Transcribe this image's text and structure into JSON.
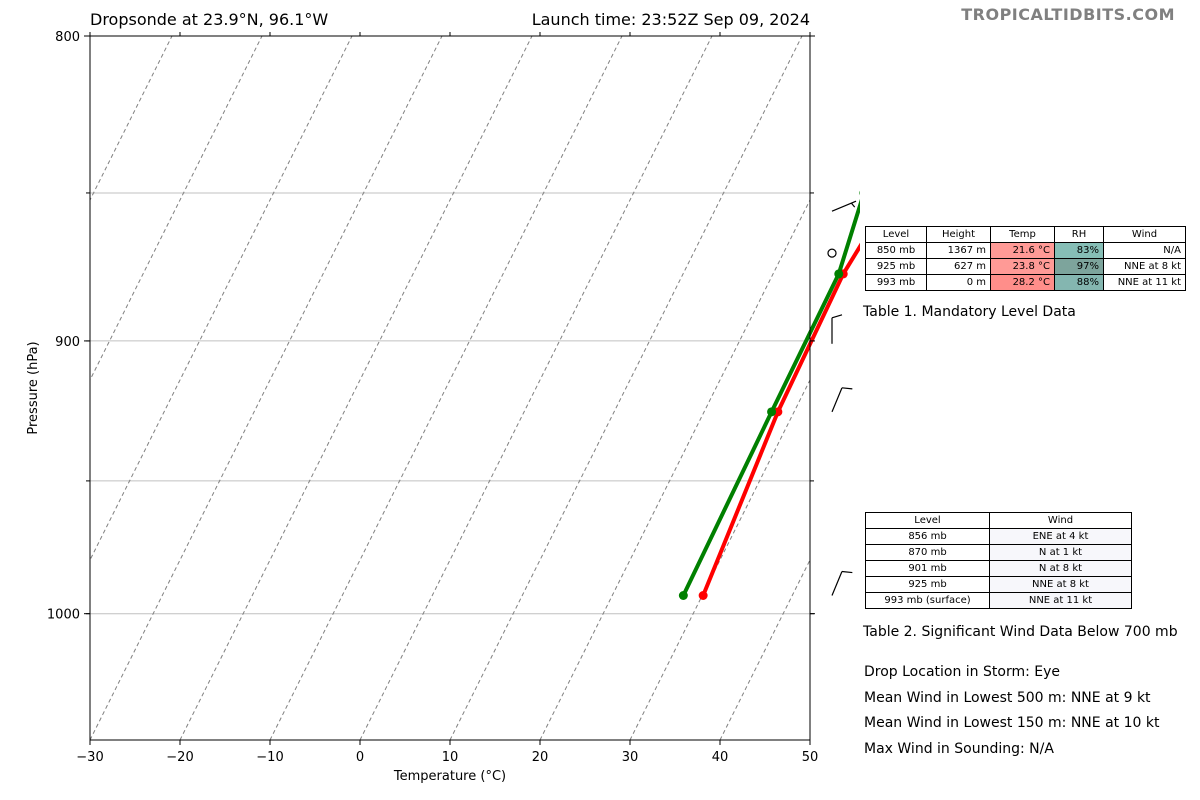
{
  "title_left": "Dropsonde at 23.9°N, 96.1°W",
  "title_right": "Launch time: 23:52Z Sep 09, 2024",
  "brand": "TROPICALTIDBITS.COM",
  "chart_data": {
    "type": "line",
    "xlabel": "Temperature (°C)",
    "ylabel": "Pressure (hPa)",
    "xlim": [
      -30,
      50
    ],
    "ylim": [
      1050,
      800
    ],
    "y_scale": "log",
    "x_ticks": [
      -30,
      -20,
      -10,
      0,
      10,
      20,
      30,
      40,
      50
    ],
    "x_tick_labels": [
      "−30",
      "−20",
      "−10",
      "0",
      "10",
      "20",
      "30",
      "40",
      "50"
    ],
    "y_ticks": [
      800,
      900,
      1000
    ],
    "y_tick_labels": [
      "800",
      "900",
      "1000"
    ],
    "grid_pressures": [
      850,
      900,
      950,
      1000
    ],
    "skew_lines": true,
    "series": [
      {
        "color": "#ff0000",
        "pressure": [
          850,
          877,
          925,
          993
        ],
        "values": [
          28.8,
          27.8,
          28.2,
          30.1
        ]
      },
      {
        "color": "#008000",
        "pressure": [
          850,
          877,
          925,
          993
        ],
        "values": [
          25.6,
          27.3,
          27.5,
          27.9
        ]
      }
    ],
    "wind_barbs": [
      {
        "pressure": 856,
        "direction": "ENE",
        "speed_kt": 4
      },
      {
        "pressure": 870,
        "direction": "N",
        "speed_kt": 1
      },
      {
        "pressure": 901,
        "direction": "N",
        "speed_kt": 8
      },
      {
        "pressure": 925,
        "direction": "NNE",
        "speed_kt": 8
      },
      {
        "pressure": 993,
        "direction": "NNE",
        "speed_kt": 11
      }
    ]
  },
  "table1": {
    "headers": [
      "Level",
      "Height",
      "Temp",
      "RH",
      "Wind"
    ],
    "rows": [
      {
        "level": "850 mb",
        "height": "1367 m",
        "temp": "21.6 °C",
        "rh": "83%",
        "wind": "N/A",
        "temp_color": "#ff9a96",
        "rh_color": "#86beb6"
      },
      {
        "level": "925 mb",
        "height": "627 m",
        "temp": "23.8 °C",
        "rh": "97%",
        "wind": "NNE at 8 kt",
        "temp_color": "#ff9a96",
        "rh_color": "#7da49c"
      },
      {
        "level": "993 mb",
        "height": "0 m",
        "temp": "28.2 °C",
        "rh": "88%",
        "wind": "NNE at 11 kt",
        "temp_color": "#ff8e8a",
        "rh_color": "#84b6b0"
      }
    ],
    "caption": "Table 1. Mandatory Level Data"
  },
  "table2": {
    "headers": [
      "Level",
      "Wind"
    ],
    "rows": [
      {
        "level": "856 mb",
        "wind": "ENE at 4 kt"
      },
      {
        "level": "870 mb",
        "wind": "N at 1 kt"
      },
      {
        "level": "901 mb",
        "wind": "N at 8 kt"
      },
      {
        "level": "925 mb",
        "wind": "NNE at 8 kt"
      },
      {
        "level": "993 mb (surface)",
        "wind": "NNE at 11 kt"
      }
    ],
    "caption": "Table 2. Significant Wind Data Below 700 mb"
  },
  "info": {
    "drop_location": "Drop Location in Storm: Eye",
    "mean_wind_500": "Mean Wind in Lowest 500 m:  NNE at 9 kt",
    "mean_wind_150": "Mean Wind in Lowest 150 m:  NNE at 10 kt",
    "max_wind": "Max Wind in Sounding:  N/A"
  }
}
